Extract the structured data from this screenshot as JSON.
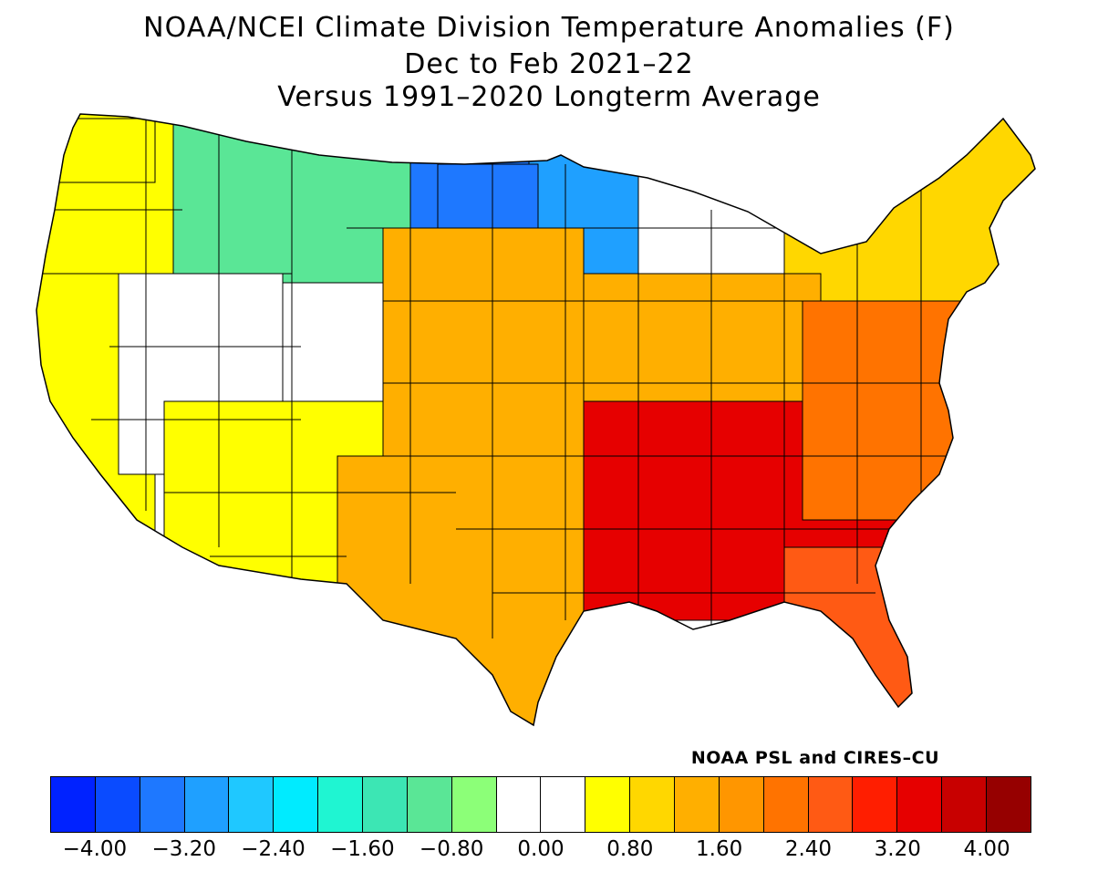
{
  "title": {
    "line1": "NOAA/NCEI Climate Division Temperature Anomalies (F)",
    "line2": "Dec to Feb 2021–22",
    "line3": "Versus 1991–2020 Longterm Average"
  },
  "credit": "NOAA PSL and CIRES–CU",
  "legend": {
    "colors": [
      "#0022ff",
      "#0a4bff",
      "#1e78ff",
      "#1fa0ff",
      "#1fc8ff",
      "#00ebff",
      "#1ff5d2",
      "#3ce6b4",
      "#5ae696",
      "#8cff78",
      "#ffffff",
      "#ffffff",
      "#ffff00",
      "#ffd700",
      "#ffaf00",
      "#ff9600",
      "#ff7300",
      "#ff5a14",
      "#ff1e00",
      "#e60000",
      "#c80000",
      "#960000"
    ],
    "tick_labels": [
      "−4.00",
      "−3.20",
      "−2.40",
      "−1.60",
      "−0.80",
      "0.00",
      "0.80",
      "1.60",
      "2.40",
      "3.20",
      "4.00"
    ],
    "min": -4.4,
    "max": 4.4
  },
  "map_regions": [
    {
      "name": "pacific-northwest",
      "value": 0.4
    },
    {
      "name": "northern-rockies",
      "value": -1.2
    },
    {
      "name": "northern-plains",
      "value": -3.6
    },
    {
      "name": "upper-midwest",
      "value": -3.2
    },
    {
      "name": "great-lakes",
      "value": -0.4
    },
    {
      "name": "northeast",
      "value": 0.9
    },
    {
      "name": "california",
      "value": 0.7
    },
    {
      "name": "great-basin",
      "value": 0.1
    },
    {
      "name": "southwest",
      "value": 0.8
    },
    {
      "name": "central-plains",
      "value": 1.6
    },
    {
      "name": "texas",
      "value": 1.3
    },
    {
      "name": "ohio-valley",
      "value": 1.2
    },
    {
      "name": "southeast",
      "value": 3.2
    },
    {
      "name": "florida",
      "value": 2.4
    },
    {
      "name": "mid-atlantic",
      "value": 2.0
    }
  ]
}
